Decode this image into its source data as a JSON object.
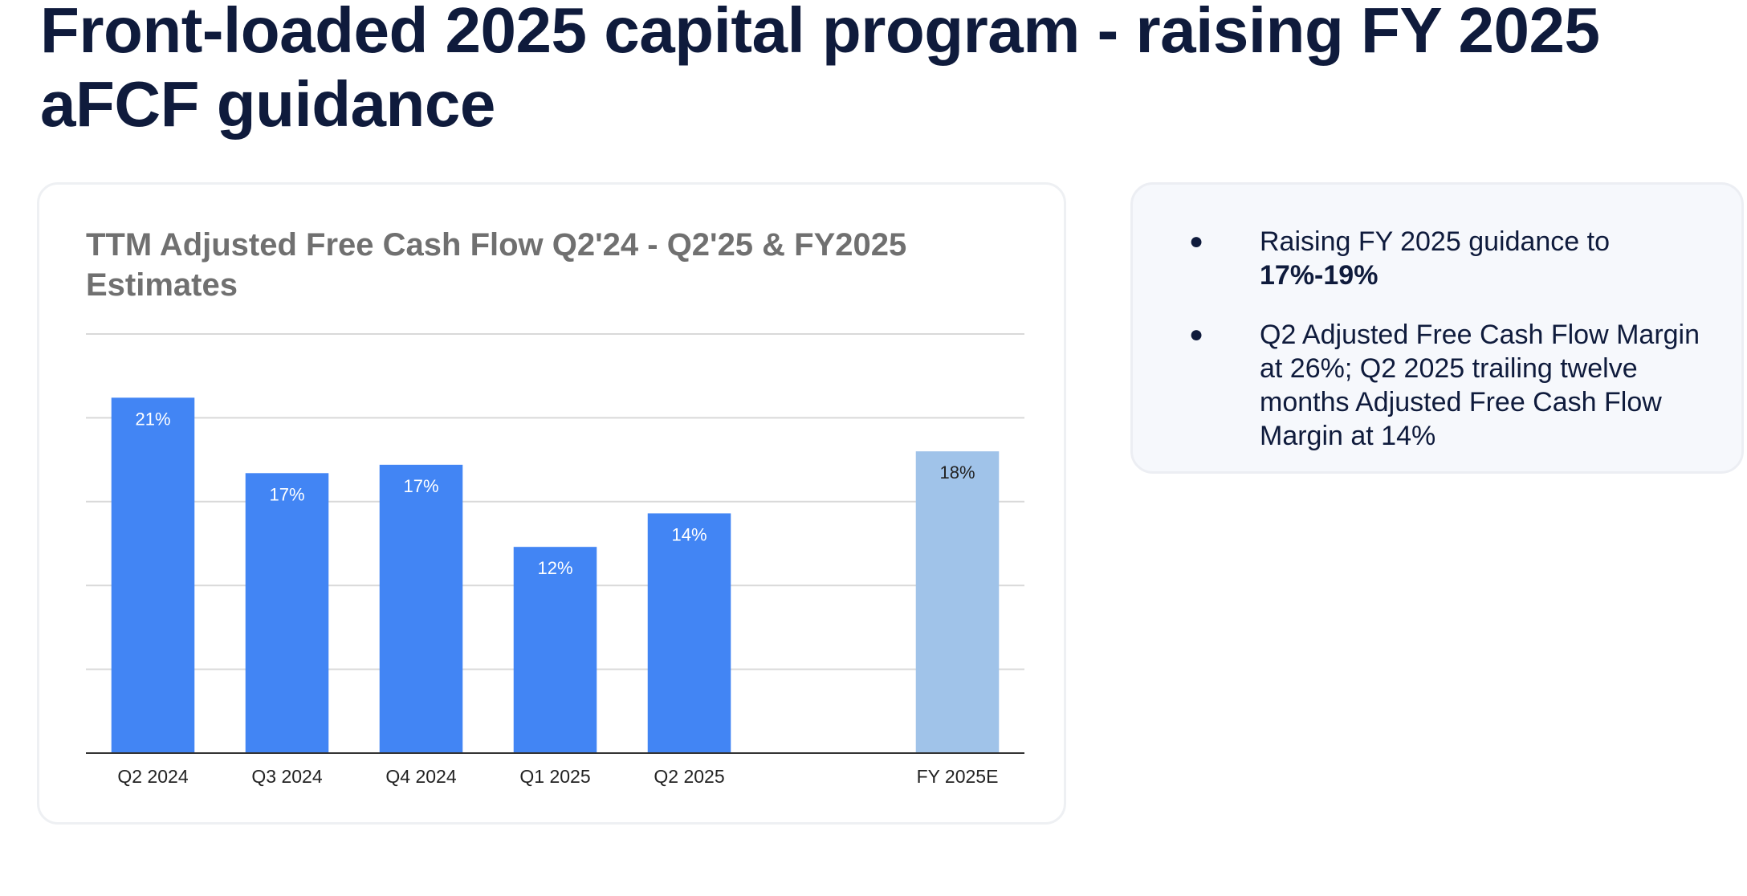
{
  "slide": {
    "title": "Front-loaded 2025 capital program - raising FY 2025 aFCF guidance"
  },
  "info": {
    "bullet_1_text": "Raising FY 2025 guidance to",
    "bullet_1_strong": "17%-19%",
    "bullet_2_text": "Q2 Adjusted Free Cash Flow Margin at 26%; Q2 2025 trailing twelve months Adjusted Free Cash Flow Margin at 14%",
    "bullet_marker": "●"
  },
  "colors": {
    "actual_bar": "#4285f4",
    "estimate_bar": "#a0c3e9",
    "gridline": "#d9d9d9",
    "axis_line": "#333333",
    "title_text": "#0f1b3c"
  },
  "chart_data": {
    "type": "bar",
    "title": "TTM Adjusted Free Cash Flow Q2'24 - Q2'25 & FY2025 Estimates",
    "xlabel": "",
    "ylabel": "",
    "ylim": [
      0,
      25
    ],
    "grid": true,
    "legend": "none",
    "categories": [
      "Q2 2024",
      "Q3 2024",
      "Q4 2024",
      "Q1 2025",
      "Q2 2025",
      "",
      "FY 2025E"
    ],
    "values": [
      21.2,
      16.7,
      17.2,
      12.3,
      14.3,
      null,
      18.0
    ],
    "labels": [
      "21%",
      "17%",
      "17%",
      "12%",
      "14%",
      "",
      "18%"
    ],
    "estimate_flags": [
      false,
      false,
      false,
      false,
      false,
      false,
      true
    ]
  }
}
